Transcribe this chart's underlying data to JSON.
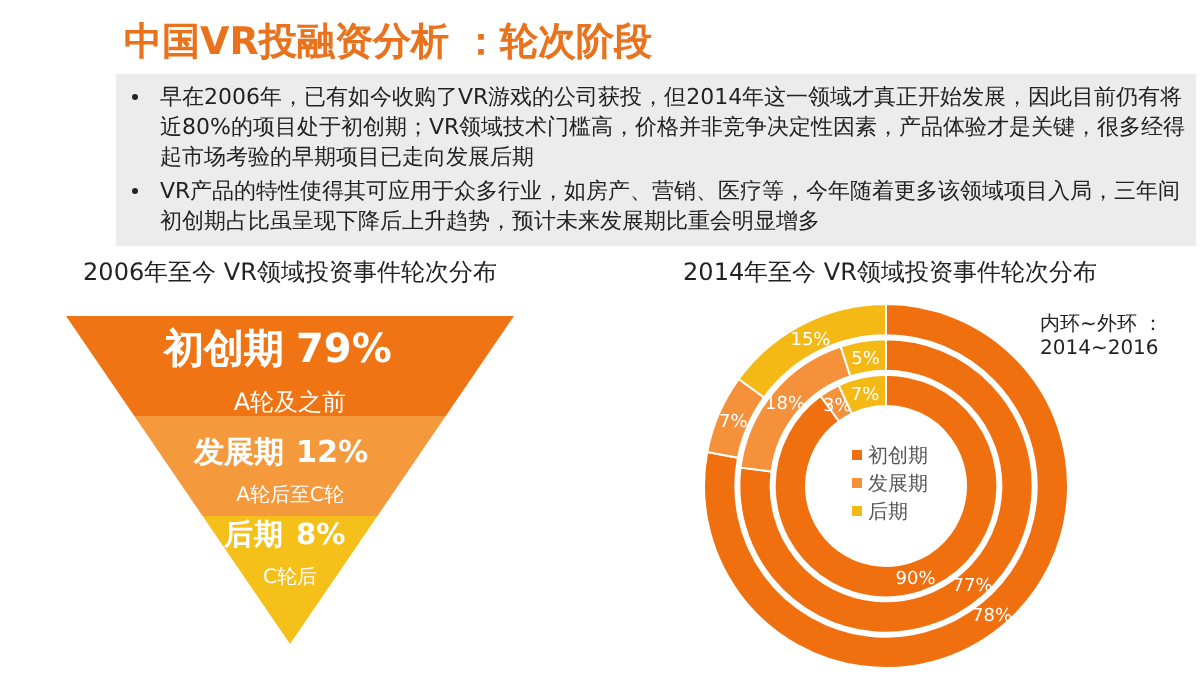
{
  "chart_data": [
    {
      "type": "other",
      "title": "中国VR投融资分析 ：轮次阶段",
      "annotations": [
        "早在2006年，已有如今收购了VR游戏的公司获投，但2014年这一领域才真正开始发展，因此目前仍有将近80%的项目处于初创期；VR领域技术门槛高，价格并非竞争决定性因素，产品体验才是关键，很多经得起市场考验的早期项目已走向发展后期",
        "VR产品的特性使得其可应用于众多行业，如房产、营销、医疗等，今年随着更多该领域项目入局，三年间初创期占比虽呈现下降后上升趋势，预计未来发展期比重会明显增多"
      ]
    },
    {
      "type": "other",
      "title": "2006年至今 VR领域投资事件轮次分布",
      "categories": [
        "初创期",
        "发展期",
        "后期"
      ],
      "values": [
        79,
        12,
        8
      ],
      "value_labels": [
        "79%",
        "12%",
        "8%"
      ],
      "colors": [
        "#f07414",
        "#f59a3c",
        "#f5c01a"
      ],
      "annotations": [
        "A轮及之前",
        "A轮后至C轮",
        "C轮后"
      ]
    },
    {
      "type": "donut",
      "title": "2014年至今 VR领域投资事件轮次分布",
      "categories": [
        "初创期",
        "发展期",
        "后期"
      ],
      "colors": [
        "#f07010",
        "#f4913a",
        "#f5b915"
      ],
      "legend": "center",
      "annotations": [
        "内环~外环 ：",
        "2014~2016"
      ],
      "series": [
        {
          "values": [
            90,
            3,
            7
          ],
          "value_labels": [
            "90%",
            "3%",
            "7%"
          ]
        },
        {
          "values": [
            77,
            18,
            5
          ],
          "value_labels": [
            "77%",
            "18%",
            "5%"
          ]
        },
        {
          "values": [
            78,
            7,
            15
          ],
          "value_labels": [
            "78%",
            "7%",
            "15%"
          ]
        }
      ]
    }
  ]
}
